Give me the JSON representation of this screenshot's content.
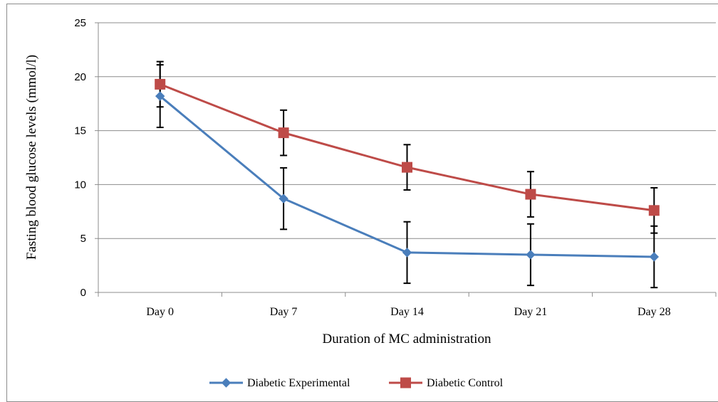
{
  "chart_data": {
    "type": "line",
    "title": "",
    "xlabel": "Duration of MC administration",
    "ylabel": "Fasting blood glucose levels (mmol/l)",
    "categories": [
      "Day 0",
      "Day 7",
      "Day 14",
      "Day 21",
      "Day 28"
    ],
    "ylim": [
      0,
      25
    ],
    "yticks": [
      0,
      5,
      10,
      15,
      20,
      25
    ],
    "grid": true,
    "legend_position": "bottom",
    "series": [
      {
        "name": "Diabetic Experimental",
        "color": "#4a7ebb",
        "marker": "diamond",
        "values": [
          18.2,
          8.7,
          3.7,
          3.5,
          3.3
        ],
        "error": [
          2.9,
          2.85,
          2.85,
          2.85,
          2.85
        ]
      },
      {
        "name": "Diabetic Control",
        "color": "#be4b48",
        "marker": "square",
        "values": [
          19.3,
          14.8,
          11.6,
          9.1,
          7.6
        ],
        "error": [
          2.1,
          2.1,
          2.1,
          2.1,
          2.1
        ]
      }
    ]
  }
}
